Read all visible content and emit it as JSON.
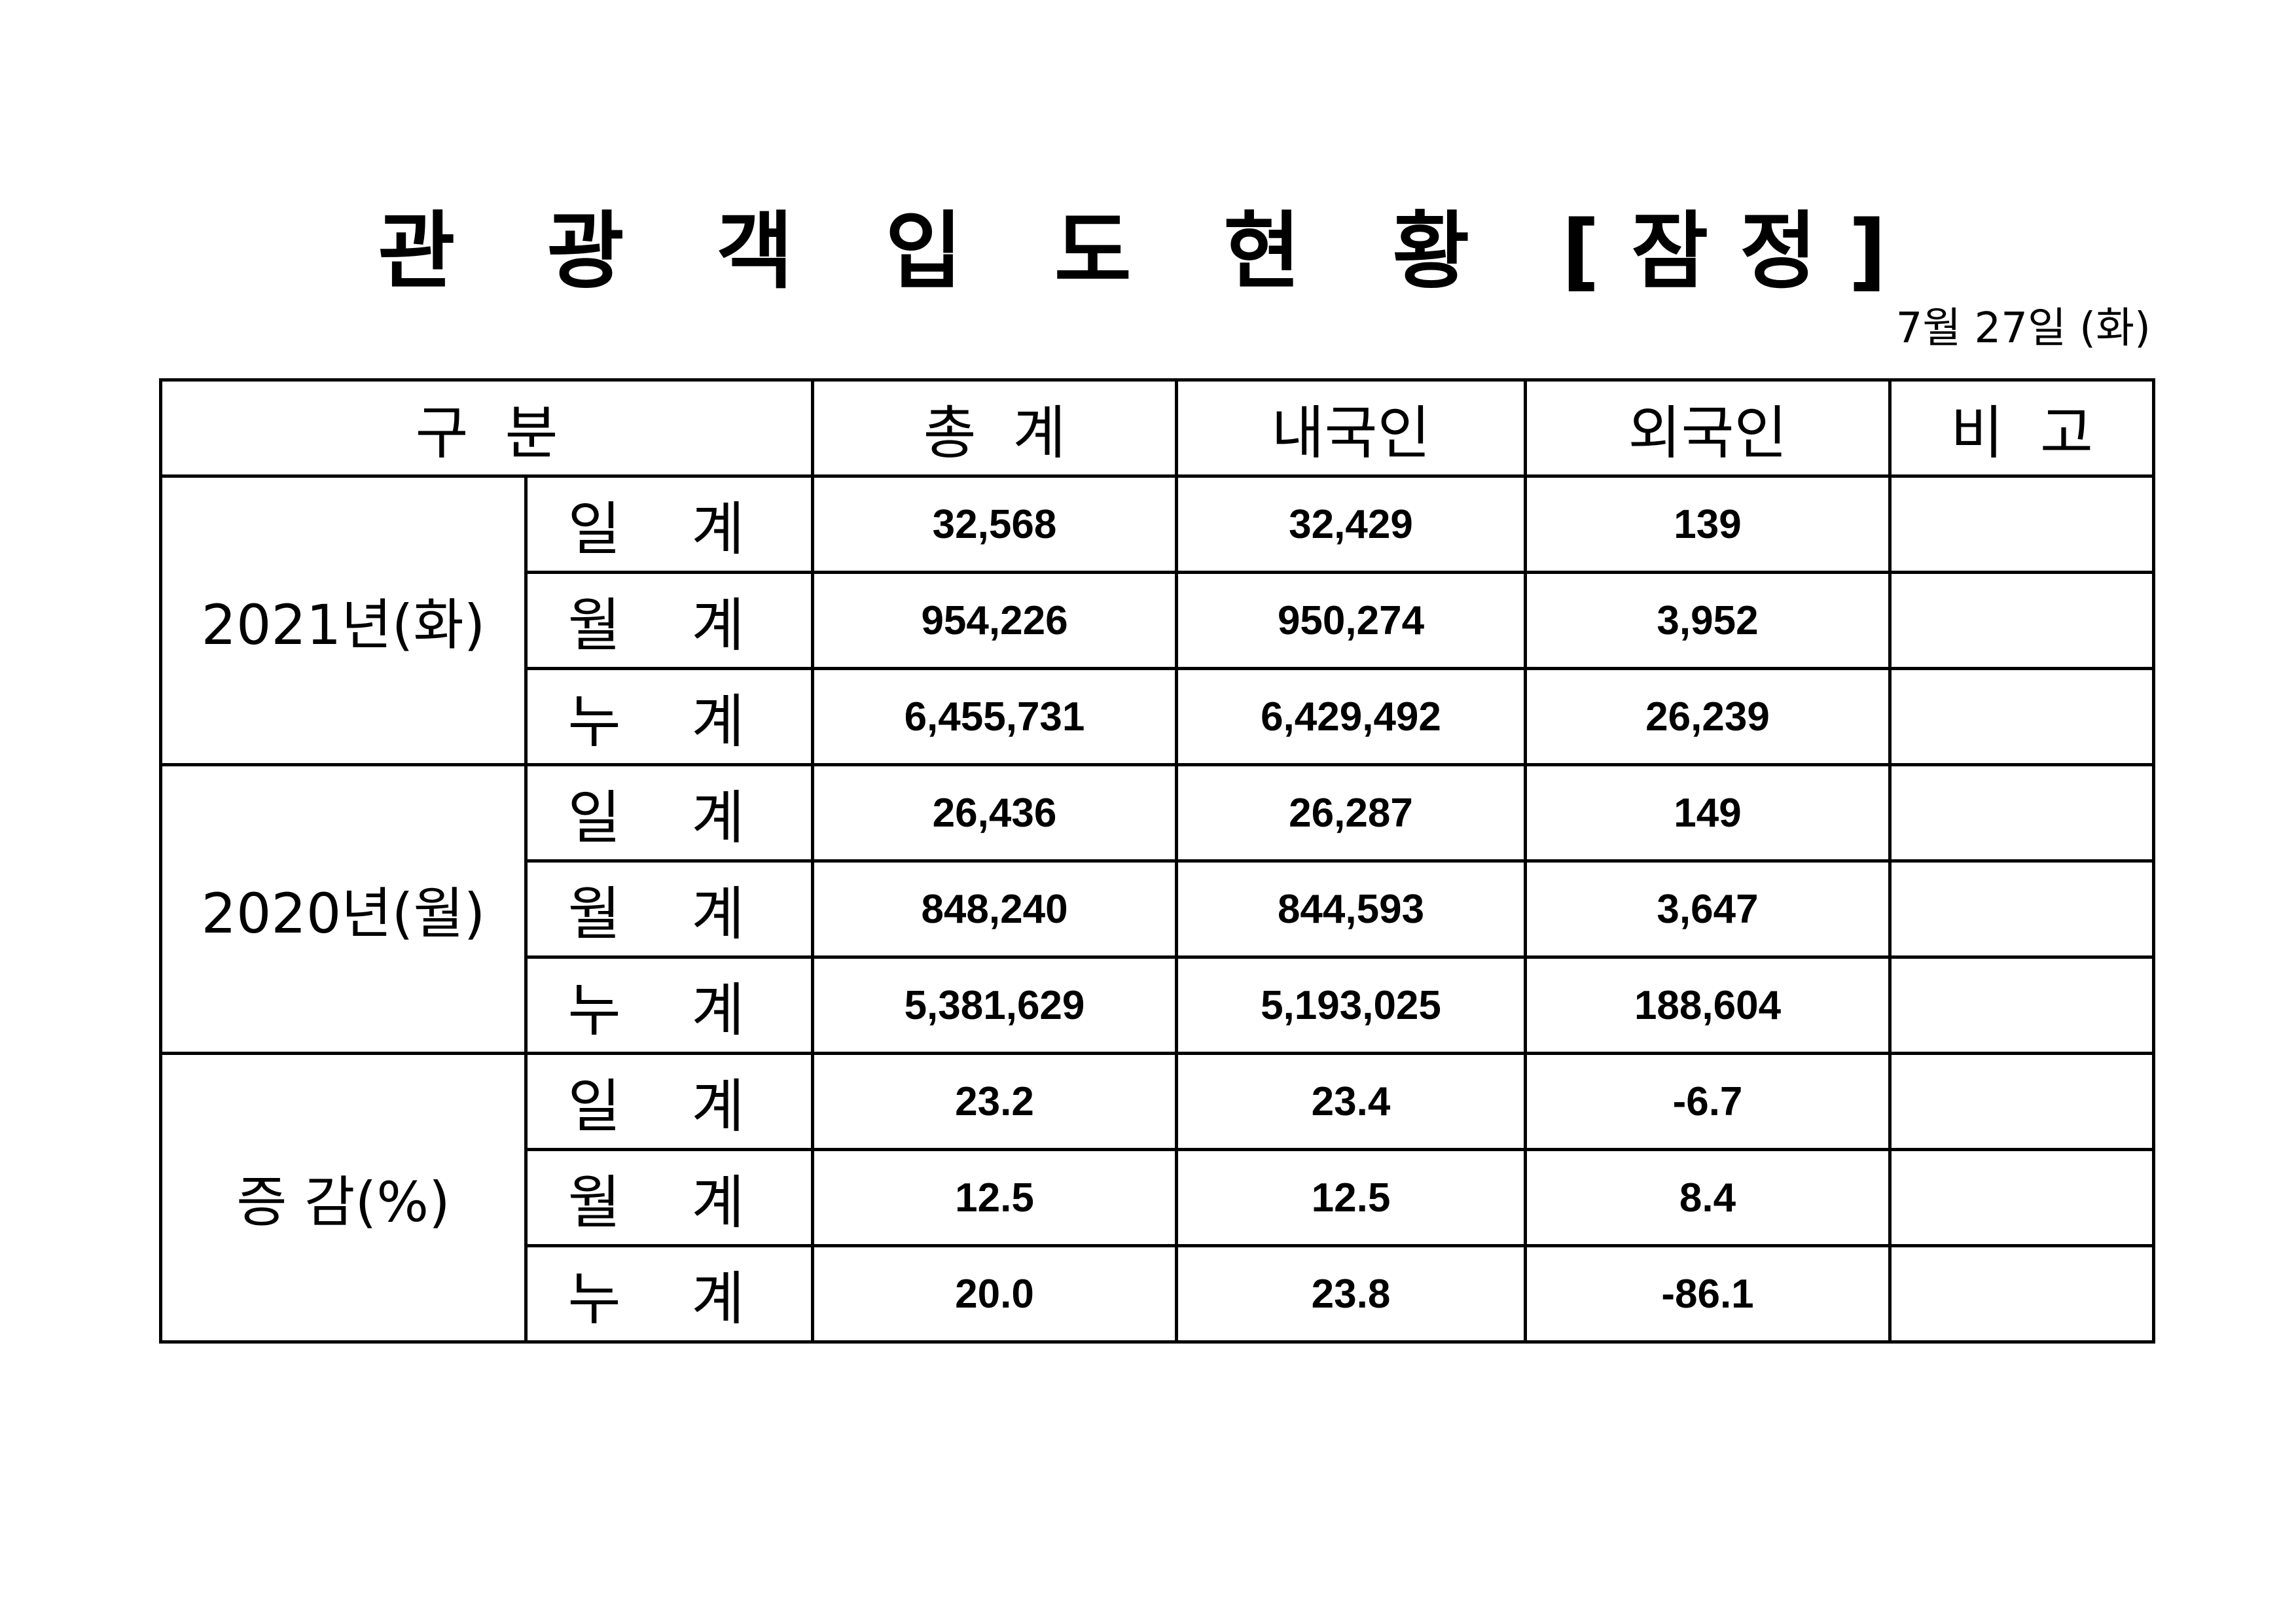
{
  "title": "관 광 객 입 도 현 황 [잠정]",
  "date": "7월 27일 (화)",
  "headers": [
    "구  분",
    "총  계",
    "내국인",
    "외국인",
    "비  고"
  ],
  "groups": [
    {
      "label": "2021년(화)",
      "rows": [
        {
          "sub": "일 계",
          "total": "32,568",
          "domestic": "32,429",
          "foreign": "139",
          "note": ""
        },
        {
          "sub": "월 계",
          "total": "954,226",
          "domestic": "950,274",
          "foreign": "3,952",
          "note": ""
        },
        {
          "sub": "누 계",
          "total": "6,455,731",
          "domestic": "6,429,492",
          "foreign": "26,239",
          "note": ""
        }
      ]
    },
    {
      "label": "2020년(월)",
      "rows": [
        {
          "sub": "일 계",
          "total": "26,436",
          "domestic": "26,287",
          "foreign": "149",
          "note": ""
        },
        {
          "sub": "월 계",
          "total": "848,240",
          "domestic": "844,593",
          "foreign": "3,647",
          "note": ""
        },
        {
          "sub": "누 계",
          "total": "5,381,629",
          "domestic": "5,193,025",
          "foreign": "188,604",
          "note": ""
        }
      ]
    },
    {
      "label": "증 감(%)",
      "rows": [
        {
          "sub": "일 계",
          "total": "23.2",
          "domestic": "23.4",
          "foreign": "-6.7",
          "note": ""
        },
        {
          "sub": "월 계",
          "total": "12.5",
          "domestic": "12.5",
          "foreign": "8.4",
          "note": ""
        },
        {
          "sub": "누 계",
          "total": "20.0",
          "domestic": "23.8",
          "foreign": "-86.1",
          "note": ""
        }
      ]
    }
  ]
}
